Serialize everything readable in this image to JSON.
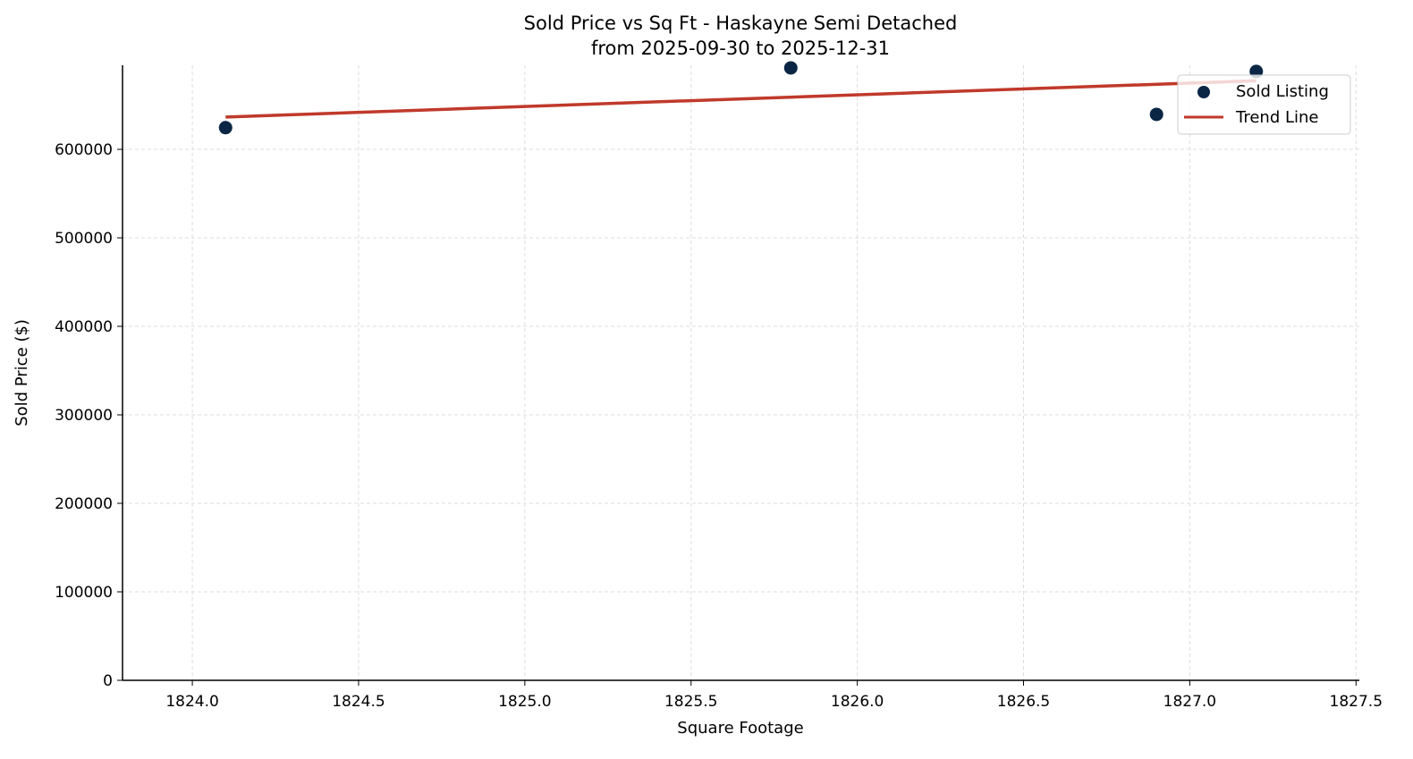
{
  "chart_data": {
    "type": "scatter",
    "title": "Sold Price vs Sq Ft - Haskayne Semi Detached",
    "subtitle": "from 2025-09-30 to 2025-12-31",
    "xlabel": "Square Footage",
    "ylabel": "Sold Price ($)",
    "xlim": [
      1823.79,
      1827.51
    ],
    "ylim": [
      0,
      695000
    ],
    "xticks": [
      1824.0,
      1824.5,
      1825.0,
      1825.5,
      1826.0,
      1826.5,
      1827.0,
      1827.5
    ],
    "xtick_labels": [
      "1824.0",
      "1824.5",
      "1825.0",
      "1825.5",
      "1826.0",
      "1826.5",
      "1827.0",
      "1827.5"
    ],
    "yticks": [
      0,
      100000,
      200000,
      300000,
      400000,
      500000,
      600000
    ],
    "ytick_labels": [
      "0",
      "100000",
      "200000",
      "300000",
      "400000",
      "500000",
      "600000"
    ],
    "grid": true,
    "legend_placement": "top-right",
    "series": [
      {
        "name": "Sold Listing",
        "kind": "scatter",
        "color": "#0b2545",
        "points": [
          [
            1824.1,
            624500
          ],
          [
            1825.8,
            692000
          ],
          [
            1826.9,
            639500
          ],
          [
            1827.2,
            688000
          ]
        ]
      },
      {
        "name": "Trend Line",
        "kind": "line",
        "color": "#c0392b",
        "points": [
          [
            1824.1,
            636500
          ],
          [
            1827.2,
            677500
          ]
        ]
      }
    ]
  }
}
